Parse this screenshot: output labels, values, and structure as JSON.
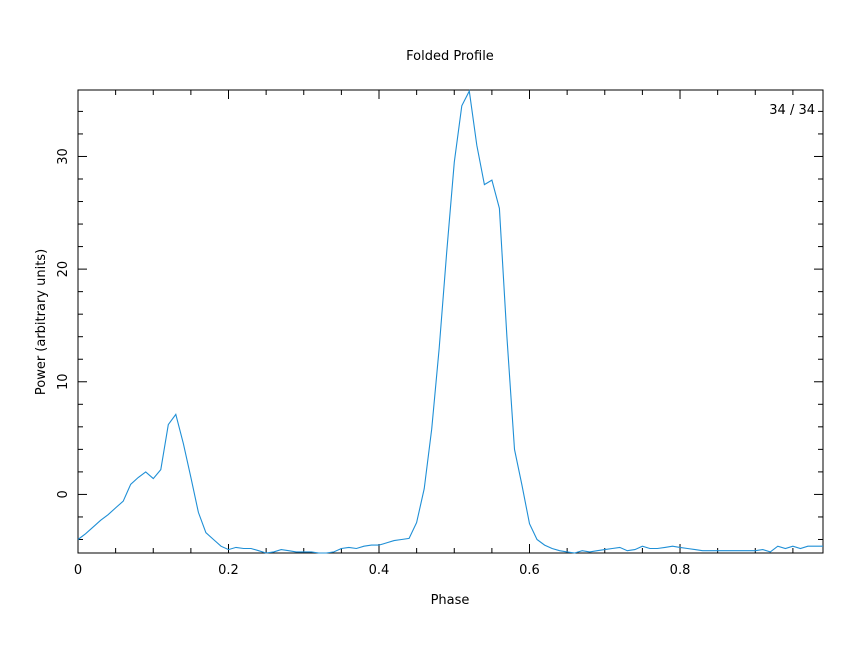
{
  "chart_data": {
    "type": "line",
    "title": "Folded Profile",
    "xlabel": "Phase",
    "ylabel": "Power (arbitrary units)",
    "annotation": "34 / 34",
    "xlim": [
      0,
      0.99
    ],
    "ylim": [
      -5.2,
      35.9
    ],
    "x_ticks": [
      0,
      0.2,
      0.4,
      0.6,
      0.8
    ],
    "x_tick_labels": [
      "0",
      "0.2",
      "0.4",
      "0.6",
      "0.8"
    ],
    "y_ticks": [
      0,
      10,
      20,
      30
    ],
    "y_tick_labels": [
      "0",
      "10",
      "20",
      "30"
    ],
    "grid": false,
    "line_color": "#1f8fd6",
    "series": [
      {
        "x": [
          0.0,
          0.01,
          0.02,
          0.03,
          0.04,
          0.05,
          0.06,
          0.07,
          0.08,
          0.09,
          0.1,
          0.11,
          0.12,
          0.13,
          0.14,
          0.15,
          0.16,
          0.17,
          0.18,
          0.19,
          0.2,
          0.21,
          0.22,
          0.23,
          0.24,
          0.25,
          0.26,
          0.27,
          0.28,
          0.29,
          0.3,
          0.31,
          0.32,
          0.33,
          0.34,
          0.35,
          0.36,
          0.37,
          0.38,
          0.39,
          0.4,
          0.41,
          0.42,
          0.43,
          0.44,
          0.45,
          0.46,
          0.47,
          0.48,
          0.49,
          0.5,
          0.51,
          0.52,
          0.53,
          0.54,
          0.55,
          0.56,
          0.57,
          0.58,
          0.59,
          0.6,
          0.61,
          0.62,
          0.63,
          0.64,
          0.65,
          0.66,
          0.67,
          0.68,
          0.69,
          0.7,
          0.71,
          0.72,
          0.73,
          0.74,
          0.75,
          0.76,
          0.77,
          0.78,
          0.79,
          0.8,
          0.81,
          0.82,
          0.83,
          0.84,
          0.85,
          0.86,
          0.87,
          0.88,
          0.89,
          0.9,
          0.91,
          0.92,
          0.93,
          0.94,
          0.95,
          0.96,
          0.97,
          0.98,
          0.99
        ],
        "y": [
          -4.0,
          -3.5,
          -2.9,
          -2.3,
          -1.8,
          -1.2,
          -0.6,
          0.9,
          1.5,
          2.0,
          1.4,
          2.2,
          6.2,
          7.1,
          4.5,
          1.5,
          -1.6,
          -3.4,
          -4.0,
          -4.6,
          -4.9,
          -4.7,
          -4.8,
          -4.8,
          -5.0,
          -5.2,
          -5.1,
          -4.9,
          -5.0,
          -5.1,
          -5.1,
          -5.1,
          -5.2,
          -5.2,
          -5.1,
          -4.8,
          -4.7,
          -4.8,
          -4.6,
          -4.5,
          -4.5,
          -4.3,
          -4.1,
          -4.0,
          -3.9,
          -2.5,
          0.5,
          5.8,
          13.0,
          21.5,
          29.5,
          34.5,
          35.8,
          31.0,
          27.5,
          27.9,
          25.4,
          14.0,
          4.0,
          0.8,
          -2.6,
          -4.0,
          -4.5,
          -4.8,
          -5.0,
          -5.1,
          -5.2,
          -5.0,
          -5.1,
          -5.0,
          -4.9,
          -4.8,
          -4.7,
          -5.0,
          -4.9,
          -4.6,
          -4.8,
          -4.8,
          -4.7,
          -4.6,
          -4.7,
          -4.8,
          -4.9,
          -5.0,
          -5.0,
          -5.0,
          -5.0,
          -5.0,
          -5.0,
          -5.0,
          -5.0,
          -4.9,
          -5.1,
          -4.6,
          -4.8,
          -4.6,
          -4.8,
          -4.6,
          -4.6,
          -4.6
        ]
      }
    ]
  }
}
